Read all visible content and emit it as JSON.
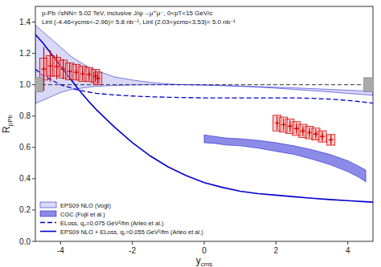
{
  "chart_data": {
    "type": "line",
    "xlabel": "ycms",
    "ylabel": "RpPb",
    "annotations": [
      "p-Pb √sNN= 5.02 TeV, inclusive J/ψ→μ⁺μ⁻, 0<pT<15 GeV/c",
      "Lint (-4.46<ycms<-2.96)= 5.8 nb⁻¹, Lint (2.03<ycms<3.53)= 5.0 nb⁻¹"
    ],
    "xlim": [
      -4.7,
      4.7
    ],
    "ylim": [
      0,
      1.5
    ],
    "xticks": [
      -4,
      -2,
      0,
      2,
      4
    ],
    "yticks": [
      {
        "value": 0,
        "label": "0.0"
      },
      0.2,
      0.4,
      0.6,
      0.8,
      {
        "value": 1.0,
        "label": "1.0"
      },
      1.2,
      1.4
    ],
    "grid": false,
    "legend": "lower left",
    "reference_line": 1.0,
    "series": [
      {
        "name": "EPS09 NLO (Vogt)",
        "type": "band",
        "color": "#0000CC",
        "x": [
          -4.7,
          -4.5,
          -4.2,
          -4.0,
          -3.7,
          -3.5,
          -3.2,
          -3.0,
          -2.5,
          -2.0,
          -1.5,
          -1.0,
          -0.5,
          0.0,
          0.5,
          1.0,
          1.5,
          2.0,
          2.5,
          3.0,
          3.5,
          4.0,
          4.5,
          4.7
        ],
        "lower": [
          0.88,
          0.9,
          0.93,
          0.95,
          0.97,
          0.975,
          0.985,
          0.99,
          0.995,
          0.998,
          1.0,
          1.0,
          1.0,
          0.998,
          0.994,
          0.99,
          0.984,
          0.978,
          0.97,
          0.962,
          0.954,
          0.945,
          0.936,
          0.932
        ],
        "upper": [
          1.38,
          1.34,
          1.28,
          1.24,
          1.18,
          1.15,
          1.11,
          1.09,
          1.05,
          1.03,
          1.015,
          1.005,
          1.0,
          0.998,
          0.996,
          0.992,
          0.988,
          0.984,
          0.98,
          0.975,
          0.97,
          0.965,
          0.96,
          0.958
        ]
      },
      {
        "name": "CGC (Fujii et al.)",
        "type": "band",
        "color": "#0000CC",
        "x": [
          0.0,
          0.3,
          0.6,
          1.0,
          1.5,
          2.0,
          2.5,
          3.0,
          3.5,
          4.0,
          4.3,
          4.5
        ],
        "lower": [
          0.63,
          0.625,
          0.615,
          0.61,
          0.595,
          0.575,
          0.555,
          0.525,
          0.49,
          0.445,
          0.41,
          0.38
        ],
        "upper": [
          0.68,
          0.67,
          0.66,
          0.655,
          0.645,
          0.63,
          0.61,
          0.585,
          0.555,
          0.515,
          0.48,
          0.455
        ]
      },
      {
        "name": "ELoss, q₀=0.075 GeV²/fm (Arleo et al.)",
        "type": "line",
        "line_style": "dashed",
        "color": "#0000CC",
        "x": [
          -4.7,
          -4.5,
          -4.0,
          -3.5,
          -3.0,
          -2.5,
          -2.0,
          -1.5,
          -1.0,
          -0.5,
          0.0,
          0.5,
          1.0,
          1.5,
          2.0,
          2.5,
          3.0,
          3.5,
          4.0,
          4.5,
          4.7
        ],
        "values": [
          1.1,
          1.06,
          1.0,
          0.965,
          0.945,
          0.935,
          0.928,
          0.923,
          0.92,
          0.918,
          0.916,
          0.916,
          0.916,
          0.916,
          0.916,
          0.916,
          0.913,
          0.908,
          0.9,
          0.888,
          0.882
        ]
      },
      {
        "name": "EPS09 NLO + ELoss, q₀=0.055 GeV²/fm (Arleo et al.)",
        "type": "line",
        "line_style": "solid",
        "color": "#0000CC",
        "x": [
          -4.7,
          -4.5,
          -4.2,
          -4.0,
          -3.7,
          -3.5,
          -3.2,
          -3.0,
          -2.5,
          -2.0,
          -1.5,
          -1.0,
          -0.5,
          0.0,
          0.5,
          1.0,
          1.5,
          2.0,
          2.5,
          3.0,
          3.5,
          4.0,
          4.5,
          4.7
        ],
        "values": [
          1.32,
          1.27,
          1.18,
          1.12,
          1.03,
          0.97,
          0.89,
          0.84,
          0.73,
          0.63,
          0.545,
          0.475,
          0.42,
          0.375,
          0.345,
          0.32,
          0.305,
          0.295,
          0.285,
          0.275,
          0.267,
          0.26,
          0.253,
          0.25
        ]
      },
      {
        "type": "errorbar",
        "marker": "plus",
        "color": "#CC0000",
        "x": [
          -4.465,
          -4.285,
          -4.105,
          -3.925,
          -3.745,
          -3.565,
          -3.385,
          -3.205,
          -3.025,
          -2.96
        ],
        "values": [
          1.1,
          1.12,
          1.115,
          1.1,
          1.085,
          1.08,
          1.07,
          1.065,
          1.055,
          1.04
        ],
        "stat_err": [
          0.14,
          0.1,
          0.08,
          0.065,
          0.055,
          0.05,
          0.045,
          0.04,
          0.038,
          0.035
        ],
        "syst_err": [
          0.07,
          0.065,
          0.06,
          0.057,
          0.054,
          0.05,
          0.048,
          0.045,
          0.043,
          0.04
        ]
      },
      {
        "type": "errorbar",
        "marker": "plus",
        "color": "#CC0000",
        "x": [
          2.03,
          2.21,
          2.39,
          2.57,
          2.75,
          2.93,
          3.11,
          3.29,
          3.53
        ],
        "values": [
          0.755,
          0.745,
          0.735,
          0.72,
          0.705,
          0.695,
          0.685,
          0.67,
          0.648
        ],
        "stat_err": [
          0.045,
          0.04,
          0.038,
          0.036,
          0.034,
          0.033,
          0.032,
          0.032,
          0.033
        ],
        "syst_err": [
          0.05,
          0.048,
          0.046,
          0.044,
          0.042,
          0.04,
          0.038,
          0.036,
          0.034
        ]
      },
      {
        "type": "box",
        "color": "#888888",
        "x": [
          -4.63,
          4.58
        ],
        "values": [
          1.0,
          1.0
        ],
        "error": [
          0.045,
          0.045
        ]
      }
    ]
  }
}
